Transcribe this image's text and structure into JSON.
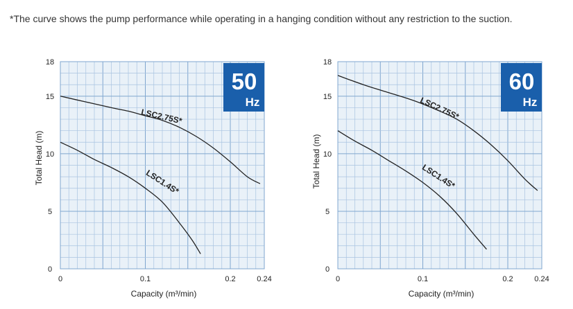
{
  "note": "*The curve shows the pump performance while operating in a hanging condition without any restriction to the suction.",
  "colors": {
    "grid_background": "#e9f1f8",
    "grid_line": "#7fa6cf",
    "grid_minor": "#a9c3e0",
    "badge": "#1a5fab",
    "curve": "#222222"
  },
  "chart_data": [
    {
      "type": "line",
      "badge_number": "50",
      "badge_unit": "Hz",
      "xlabel": "Capacity (m³/min)",
      "ylabel": "Total Head (m)",
      "xlim": [
        0,
        0.24
      ],
      "ylim": [
        0,
        18
      ],
      "xticks": [
        {
          "value": 0,
          "label": "0"
        },
        {
          "value": 0.1,
          "label": "0.1"
        },
        {
          "value": 0.2,
          "label": "0.2"
        },
        {
          "value": 0.24,
          "label": "0.24"
        }
      ],
      "yticks": [
        {
          "value": 0,
          "label": "0"
        },
        {
          "value": 5,
          "label": "5"
        },
        {
          "value": 10,
          "label": "10"
        },
        {
          "value": 15,
          "label": "15"
        },
        {
          "value": 18,
          "label": "18"
        }
      ],
      "grid": true,
      "series": [
        {
          "name": "LSC2.75S*",
          "x": [
            0,
            0.03,
            0.06,
            0.08,
            0.1,
            0.12,
            0.14,
            0.16,
            0.18,
            0.2,
            0.22,
            0.235
          ],
          "y": [
            15,
            14.5,
            14.0,
            13.7,
            13.3,
            12.9,
            12.3,
            11.5,
            10.5,
            9.3,
            8.0,
            7.4
          ]
        },
        {
          "name": "LSC1.4S*",
          "x": [
            0,
            0.02,
            0.04,
            0.06,
            0.08,
            0.1,
            0.12,
            0.14,
            0.155,
            0.165
          ],
          "y": [
            11,
            10.3,
            9.5,
            8.8,
            8.0,
            7.0,
            5.8,
            4.0,
            2.5,
            1.3
          ]
        }
      ]
    },
    {
      "type": "line",
      "badge_number": "60",
      "badge_unit": "Hz",
      "xlabel": "Capacity (m³/min)",
      "ylabel": "Total Head (m)",
      "xlim": [
        0,
        0.24
      ],
      "ylim": [
        0,
        18
      ],
      "xticks": [
        {
          "value": 0,
          "label": "0"
        },
        {
          "value": 0.1,
          "label": "0.1"
        },
        {
          "value": 0.2,
          "label": "0.2"
        },
        {
          "value": 0.24,
          "label": "0.24"
        }
      ],
      "yticks": [
        {
          "value": 0,
          "label": "0"
        },
        {
          "value": 5,
          "label": "5"
        },
        {
          "value": 10,
          "label": "10"
        },
        {
          "value": 15,
          "label": "15"
        },
        {
          "value": 18,
          "label": "18"
        }
      ],
      "grid": true,
      "series": [
        {
          "name": "LSC2.75S*",
          "x": [
            0,
            0.03,
            0.06,
            0.09,
            0.12,
            0.14,
            0.16,
            0.18,
            0.2,
            0.22,
            0.235
          ],
          "y": [
            16.8,
            16.0,
            15.3,
            14.6,
            13.7,
            13.0,
            12.0,
            10.8,
            9.4,
            7.8,
            6.8
          ]
        },
        {
          "name": "LSC1.4S*",
          "x": [
            0,
            0.02,
            0.04,
            0.06,
            0.08,
            0.1,
            0.12,
            0.14,
            0.16,
            0.175
          ],
          "y": [
            12,
            11.1,
            10.3,
            9.4,
            8.5,
            7.5,
            6.3,
            4.8,
            3.0,
            1.7
          ]
        }
      ]
    }
  ]
}
